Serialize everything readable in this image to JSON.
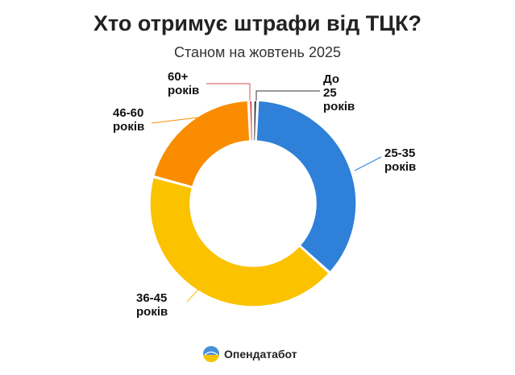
{
  "title": "Хто отримує штрафи від ТЦК?",
  "subtitle": "Станом на жовтень 2025",
  "brand": {
    "name": "Опендатабот",
    "logo_icon": "opendatabot-logo-icon",
    "logo_colors": [
      "#4a90d9",
      "#f5c400"
    ]
  },
  "chart_data": {
    "type": "pie",
    "variant": "donut",
    "title": "Хто отримує штрафи від ТЦК?",
    "subtitle": "Станом на жовтень 2025",
    "unit": "share",
    "slices": [
      {
        "label_lines": [
          "До",
          "25",
          "років"
        ],
        "value": 0.7,
        "color": "#333333"
      },
      {
        "label_lines": [
          "25-35",
          "років"
        ],
        "value": 36.0,
        "color": "#2f80d8"
      },
      {
        "label_lines": [
          "36-45",
          "років"
        ],
        "value": 42.5,
        "color": "#fbc200"
      },
      {
        "label_lines": [
          "46-60",
          "років"
        ],
        "value": 20.1,
        "color": "#f98c00"
      },
      {
        "label_lines": [
          "60+",
          "років"
        ],
        "value": 0.7,
        "color": "#d9534f"
      }
    ],
    "legend": "none"
  }
}
